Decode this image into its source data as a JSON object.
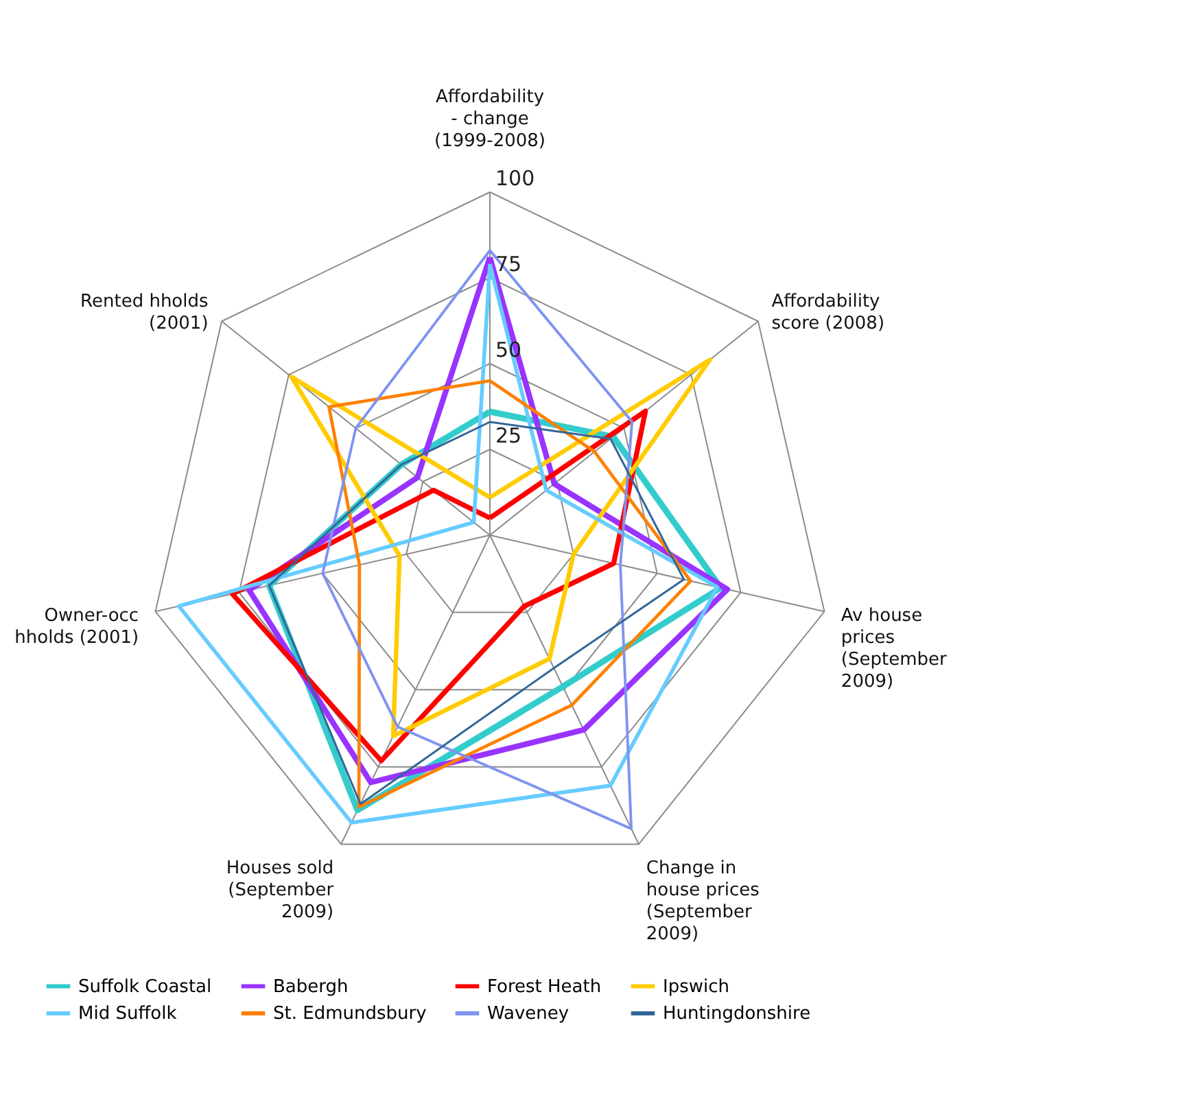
{
  "chart_data": {
    "type": "radar",
    "categories": [
      "Affordability\n- change\n(1999-2008)",
      "Affordability\nscore (2008)",
      "Av house\nprices\n(September\n2009)",
      "Change in\nhouse prices\n(September\n2009)",
      "Houses sold\n(September\n2009)",
      "Owner-occ\nhholds (2001)",
      "Rented hholds\n(2001)"
    ],
    "ylim": [
      0,
      100
    ],
    "yticks": [
      25,
      50,
      75,
      100
    ],
    "grid": true,
    "legend": "bottom",
    "series": [
      {
        "name": "Suffolk Coastal",
        "color": "#33cccc",
        "values": [
          36,
          46,
          69,
          49,
          89,
          66,
          33
        ]
      },
      {
        "name": "Babergh",
        "color": "#9933ff",
        "values": [
          81,
          24,
          71,
          63,
          80,
          72,
          27
        ]
      },
      {
        "name": "Forest Heath",
        "color": "#ff0000",
        "values": [
          5,
          58,
          37,
          23,
          73,
          77,
          21
        ]
      },
      {
        "name": "Ipswich",
        "color": "#ffcc00",
        "values": [
          11,
          82,
          25,
          40,
          65,
          27,
          74
        ]
      },
      {
        "name": "Mid Suffolk",
        "color": "#66ccff",
        "values": [
          79,
          21,
          68,
          81,
          93,
          93,
          6
        ]
      },
      {
        "name": "St. Edmundsbury",
        "color": "#ff8000",
        "values": [
          45,
          39,
          60,
          55,
          88,
          39,
          60
        ]
      },
      {
        "name": "Waveney",
        "color": "#7f93f0",
        "values": [
          83,
          53,
          39,
          95,
          62,
          50,
          50
        ]
      },
      {
        "name": "Huntingdonshire",
        "color": "#336699",
        "values": [
          33,
          45,
          58,
          43,
          87,
          66,
          33
        ]
      }
    ]
  }
}
